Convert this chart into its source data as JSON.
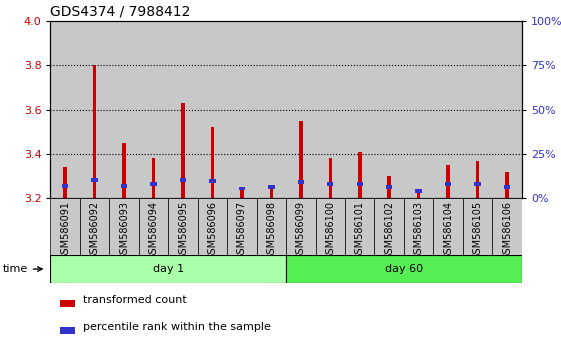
{
  "title": "GDS4374 / 7988412",
  "samples": [
    "GSM586091",
    "GSM586092",
    "GSM586093",
    "GSM586094",
    "GSM586095",
    "GSM586096",
    "GSM586097",
    "GSM586098",
    "GSM586099",
    "GSM586100",
    "GSM586101",
    "GSM586102",
    "GSM586103",
    "GSM586104",
    "GSM586105",
    "GSM586106"
  ],
  "red_values": [
    3.34,
    3.8,
    3.45,
    3.38,
    3.63,
    3.52,
    3.25,
    3.26,
    3.55,
    3.38,
    3.41,
    3.3,
    3.24,
    3.35,
    3.37,
    3.32
  ],
  "blue_bottom": [
    3.245,
    3.275,
    3.245,
    3.255,
    3.275,
    3.27,
    3.235,
    3.24,
    3.265,
    3.255,
    3.255,
    3.24,
    3.225,
    3.255,
    3.255,
    3.24
  ],
  "blue_height": [
    0.018,
    0.018,
    0.018,
    0.018,
    0.018,
    0.018,
    0.018,
    0.018,
    0.018,
    0.018,
    0.018,
    0.018,
    0.018,
    0.018,
    0.018,
    0.018
  ],
  "day1_count": 8,
  "day60_count": 8,
  "ylim": [
    3.2,
    4.0
  ],
  "ylim_right": [
    0,
    100
  ],
  "yticks_left": [
    3.2,
    3.4,
    3.6,
    3.8,
    4.0
  ],
  "yticks_right": [
    0,
    25,
    50,
    75,
    100
  ],
  "bar_width": 0.12,
  "red_color": "#CC0000",
  "blue_color": "#3333CC",
  "cell_bg": "#C8C8C8",
  "day1_color": "#AAFFAA",
  "day60_color": "#55EE55",
  "base_value": 3.2,
  "title_fontsize": 10,
  "tick_fontsize": 7,
  "label_fontsize": 8,
  "grid_yticks": [
    3.4,
    3.6,
    3.8
  ]
}
